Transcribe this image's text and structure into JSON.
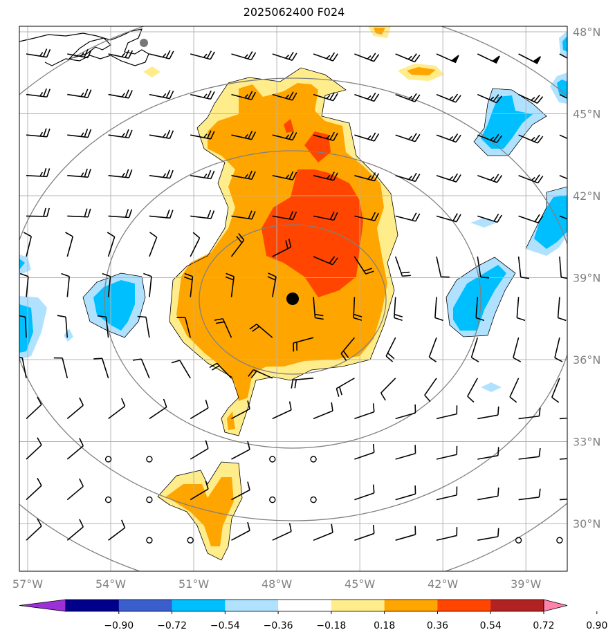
{
  "chart_data": {
    "type": "heatmap",
    "title": "2025062400 F024",
    "projection": "map",
    "longitude_ticks": [
      "57°W",
      "54°W",
      "51°W",
      "48°W",
      "45°W",
      "42°W",
      "39°W"
    ],
    "longitude_values": [
      -57,
      -54,
      -51,
      -48,
      -45,
      -42,
      -39
    ],
    "latitude_ticks": [
      "48°N",
      "45°N",
      "42°N",
      "39°N",
      "36°N",
      "33°N",
      "30°N"
    ],
    "latitude_values": [
      48,
      45,
      42,
      39,
      36,
      33,
      30
    ],
    "lon_range": [
      -57,
      -37
    ],
    "lat_range": [
      27.5,
      48.2
    ],
    "grid": true,
    "center_marker": {
      "lon": -47.3,
      "lat": 38.3
    },
    "range_rings": 4,
    "colorbar": {
      "ticks": [
        "−0.90",
        "−0.72",
        "−0.54",
        "−0.36",
        "−0.18",
        "0.18",
        "0.36",
        "0.54",
        "0.72",
        "0.90"
      ],
      "colors": [
        "#9b30d9",
        "#00008b",
        "#3a5fcd",
        "#00bfff",
        "#b0e2ff",
        "#ffffff",
        "#ffec8b",
        "#ffa500",
        "#ff4500",
        "#b22222",
        "#ff82ab"
      ],
      "orientation": "horizontal",
      "extend": "both"
    },
    "shaded_fields": [
      {
        "level": "0.18–0.36",
        "color": "#ffec8b",
        "region": "envelope around central positive anomaly (approx. 50.5°W–45°W, 34°N–46.5°N) and southern lobes"
      },
      {
        "level": "0.36–0.54",
        "color": "#ffa500",
        "region": "central positive anomaly, approx. 51°W–45°W, 35°N–46°N"
      },
      {
        "level": "0.54–0.72",
        "color": "#ff4500",
        "region": "core near 48°W–45.5°W, 38.5°N–43.5°N"
      },
      {
        "level": "−0.36 to −0.18",
        "color": "#b0e2ff",
        "region": "patches near 53°W 38°N, 41°W 38°N, 40°W 45°N, 38°W 41°N"
      },
      {
        "level": "−0.54 to −0.36",
        "color": "#00bfff",
        "region": "cores of the negative patches"
      }
    ],
    "wind_barbs": "wind barbs plotted on a regular ~1.5° grid across the domain"
  }
}
